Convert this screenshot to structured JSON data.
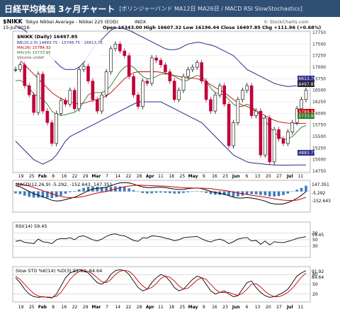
{
  "header": {
    "title": "日経平均株価 3ヶ月チャート",
    "subtitle": "[ボリンジャーバンド MA12日 MA26日 / MACD RSI SlowStochastics]"
  },
  "info": {
    "symbol": "$NIKK",
    "name": "Tokyo Nikkei Average - Nikkei 225 (EOD)",
    "exchange": "INDX",
    "date": "15-Jul-2016",
    "daily": "$NIKK (Daily) 16497.85",
    "ohlc": "Open 16343.00  High 16607.32  Low 16196.44  Close 16497.85  Chg +111.96 (+0.68%)",
    "watermark": "© StockCharts.com"
  },
  "legend": {
    "bb": "BB(20,2.0) 14883.75 - 15748.75 - 16613.76",
    "ma26": "MA(26) 15784.92",
    "ma14": "MA(14) 15733.95",
    "volume": "Volume undef"
  },
  "price_labels": {
    "upper": "16613.76",
    "close": "16497.85",
    "ma": "15784.92",
    "mid": "15733.95",
    "lower": "14883.75"
  },
  "macd": {
    "label": "MACD(12,26,9) -5.292, -152.643, 147.351",
    "v1": "147.351",
    "v2": "-5.292",
    "v3": "-152.643"
  },
  "rsi": {
    "label": "RSI(14) 59.45",
    "value": "59.45"
  },
  "sto": {
    "label": "Slow STO %K(14) %D(3) 91.92, 84.64",
    "k": "91.92",
    "d": "84.64"
  },
  "colors": {
    "bb": "#2b2b8c",
    "ma26": "#c00000",
    "ma14": "#2a7a2a",
    "up": "#000000",
    "down": "#c0003a",
    "macd": "#000000",
    "signal": "#cc0000",
    "hist": "#3b7bbf"
  },
  "chart_data": [
    {
      "type": "candlestick",
      "x_tick_labels": [
        "19",
        "25",
        "Feb",
        "8",
        "16",
        "22",
        "29",
        "Mar",
        "7",
        "14",
        "22",
        "28",
        "Apr",
        "11",
        "18",
        "25",
        "May",
        "9",
        "16",
        "23",
        "Jun",
        "6",
        "13",
        "20",
        "27",
        "Jul",
        "11"
      ],
      "y_tick_labels": [
        "14750",
        "15000",
        "15250",
        "15500",
        "15750",
        "16000",
        "16250",
        "16500",
        "16750",
        "17000",
        "17250",
        "17500",
        "17750"
      ],
      "ylim": [
        14750,
        17750
      ],
      "close": [
        16950,
        17050,
        16600,
        16400,
        16020,
        16850,
        16050,
        15800,
        15350,
        16000,
        16280,
        16200,
        16500,
        16100,
        16950,
        17020,
        16700,
        16300,
        16050,
        16400,
        16900,
        17400,
        17500,
        17350,
        17250,
        16800,
        16400,
        16150,
        16700,
        16650,
        17200,
        17150,
        17050,
        16900,
        16700,
        16300,
        16500,
        16800,
        16950,
        17000,
        17100,
        16700,
        16300,
        16050,
        16400,
        16600,
        16200,
        15300,
        15800,
        16300,
        16500,
        16600,
        15950,
        16050,
        15100,
        15900,
        14950,
        15650,
        15450,
        15350,
        15600,
        15800,
        16100,
        16300,
        16500
      ],
      "ma14": [
        16700,
        16720,
        16650,
        16550,
        16420,
        16360,
        16300,
        16200,
        16050,
        15980,
        15960,
        15970,
        16000,
        16020,
        16100,
        16250,
        16400,
        16450,
        16450,
        16450,
        16500,
        16600,
        16750,
        16900,
        17000,
        17050,
        17000,
        16900,
        16800,
        16750,
        16750,
        16800,
        16850,
        16850,
        16850,
        16800,
        16750,
        16700,
        16720,
        16780,
        16820,
        16800,
        16700,
        16550,
        16450,
        16420,
        16400,
        16300,
        16200,
        16150,
        16150,
        16200,
        16150,
        16050,
        15950,
        15850,
        15700,
        15600,
        15500,
        15450,
        15450,
        15500,
        15600,
        15700,
        15733.95
      ],
      "ma26": [
        17200,
        17150,
        17050,
        16950,
        16850,
        16750,
        16650,
        16550,
        16450,
        16380,
        16320,
        16280,
        16250,
        16220,
        16200,
        16220,
        16250,
        16280,
        16300,
        16330,
        16380,
        16450,
        16550,
        16650,
        16750,
        16820,
        16880,
        16900,
        16900,
        16900,
        16900,
        16900,
        16890,
        16870,
        16850,
        16820,
        16800,
        16780,
        16770,
        16760,
        16750,
        16720,
        16680,
        16620,
        16560,
        16500,
        16450,
        16380,
        16300,
        16230,
        16180,
        16150,
        16100,
        16050,
        16000,
        15950,
        15900,
        15850,
        15820,
        15800,
        15790,
        15785,
        15784,
        15784,
        15784.92
      ],
      "bb_upper": [
        17900,
        17850,
        17800,
        17700,
        17600,
        17500,
        17400,
        17300,
        17200,
        17100,
        17000,
        16950,
        16950,
        16950,
        17000,
        17100,
        17250,
        17400,
        17500,
        17600,
        17700,
        17800,
        17850,
        17850,
        17830,
        17800,
        17750,
        17700,
        17650,
        17600,
        17550,
        17500,
        17450,
        17400,
        17380,
        17380,
        17400,
        17450,
        17500,
        17520,
        17540,
        17530,
        17500,
        17480,
        17450,
        17400,
        17350,
        17300,
        17250,
        17150,
        17050,
        16950,
        16900,
        16850,
        16800,
        16750,
        16700,
        16650,
        16620,
        16600,
        16580,
        16590,
        16600,
        16610,
        16613.76
      ],
      "bb_lower": [
        15400,
        15300,
        15200,
        15100,
        15000,
        14950,
        14900,
        14950,
        15000,
        15100,
        15250,
        15400,
        15500,
        15550,
        15600,
        15650,
        15700,
        15750,
        15800,
        15850,
        15900,
        15950,
        16000,
        16050,
        16100,
        16150,
        16200,
        16250,
        16250,
        16250,
        16250,
        16250,
        16250,
        16200,
        16150,
        16100,
        16050,
        16000,
        15950,
        15900,
        15850,
        15800,
        15700,
        15600,
        15500,
        15400,
        15300,
        15200,
        15100,
        15050,
        15000,
        14950,
        14930,
        14920,
        14910,
        14900,
        14890,
        14885,
        14880,
        14880,
        14880,
        14882,
        14883,
        14883,
        14883.75
      ]
    },
    {
      "type": "line",
      "name": "MACD",
      "ylim": [
        -500,
        250
      ],
      "macd": [
        150,
        120,
        60,
        0,
        -60,
        -100,
        -140,
        -180,
        -230,
        -250,
        -240,
        -210,
        -180,
        -150,
        -100,
        -40,
        20,
        60,
        80,
        90,
        110,
        150,
        190,
        220,
        230,
        220,
        190,
        150,
        120,
        100,
        100,
        110,
        110,
        100,
        80,
        60,
        50,
        55,
        70,
        80,
        90,
        70,
        40,
        0,
        -30,
        -50,
        -70,
        -110,
        -150,
        -170,
        -170,
        -160,
        -170,
        -190,
        -220,
        -250,
        -300,
        -320,
        -330,
        -320,
        -290,
        -240,
        -180,
        -100,
        -5.292
      ],
      "signal": [
        200,
        190,
        170,
        140,
        100,
        60,
        20,
        -20,
        -60,
        -100,
        -130,
        -150,
        -160,
        -160,
        -150,
        -130,
        -100,
        -70,
        -40,
        -20,
        0,
        30,
        60,
        90,
        120,
        140,
        155,
        160,
        160,
        155,
        150,
        145,
        140,
        135,
        125,
        115,
        105,
        95,
        90,
        88,
        86,
        84,
        80,
        70,
        55,
        40,
        25,
        5,
        -15,
        -40,
        -60,
        -80,
        -100,
        -115,
        -130,
        -150,
        -170,
        -190,
        -210,
        -225,
        -235,
        -235,
        -225,
        -190,
        -152.643
      ]
    },
    {
      "type": "line",
      "name": "RSI(14)",
      "ylim": [
        0,
        100
      ],
      "y_tick_labels": [
        "30",
        "50",
        "70"
      ],
      "values": [
        45,
        48,
        42,
        40,
        38,
        52,
        44,
        42,
        38,
        50,
        54,
        53,
        56,
        50,
        60,
        62,
        56,
        50,
        46,
        52,
        60,
        66,
        68,
        64,
        62,
        55,
        48,
        45,
        56,
        55,
        62,
        61,
        59,
        55,
        52,
        47,
        50,
        56,
        58,
        59,
        60,
        53,
        47,
        43,
        49,
        52,
        47,
        38,
        44,
        52,
        55,
        57,
        46,
        48,
        36,
        46,
        34,
        44,
        42,
        41,
        45,
        49,
        54,
        57,
        59.45
      ]
    },
    {
      "type": "line",
      "name": "Slow STO",
      "ylim": [
        0,
        100
      ],
      "y_tick_labels": [
        "20",
        "50",
        "80"
      ],
      "k": [
        70,
        55,
        35,
        20,
        12,
        10,
        12,
        10,
        8,
        20,
        45,
        70,
        85,
        90,
        95,
        92,
        85,
        70,
        55,
        50,
        60,
        80,
        92,
        95,
        92,
        80,
        60,
        40,
        30,
        35,
        55,
        70,
        80,
        75,
        60,
        40,
        30,
        35,
        50,
        65,
        75,
        70,
        50,
        30,
        20,
        25,
        30,
        20,
        12,
        15,
        35,
        55,
        60,
        40,
        25,
        15,
        10,
        12,
        18,
        25,
        35,
        55,
        75,
        85,
        91.92
      ],
      "d": [
        75,
        65,
        50,
        35,
        22,
        14,
        11,
        11,
        10,
        13,
        25,
        45,
        65,
        80,
        90,
        92,
        90,
        82,
        70,
        58,
        55,
        65,
        80,
        90,
        93,
        90,
        78,
        60,
        45,
        35,
        40,
        52,
        68,
        75,
        72,
        60,
        45,
        35,
        38,
        50,
        63,
        70,
        65,
        50,
        35,
        25,
        25,
        25,
        20,
        16,
        22,
        35,
        50,
        52,
        42,
        28,
        18,
        12,
        12,
        17,
        25,
        38,
        55,
        72,
        84.64
      ]
    }
  ]
}
